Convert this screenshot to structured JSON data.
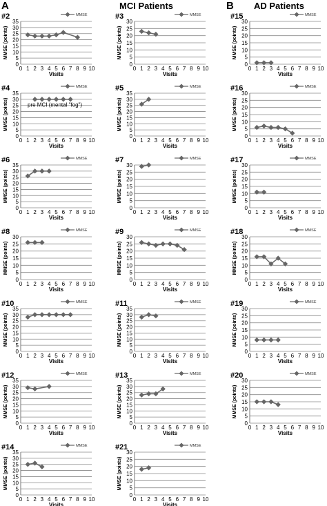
{
  "headers": {
    "A": "A",
    "mci": "MCI Patients",
    "B": "B",
    "ad": "AD Patients"
  },
  "legend_label": "MMSE",
  "ylabel": "MMSE (points)",
  "xlabel": "Visits",
  "colors": {
    "line": "#6b6b6b",
    "marker": "#666666",
    "grid": "#8a8a8a",
    "text": "#000000"
  },
  "chart_data": [
    {
      "id": "#2",
      "type": "line",
      "ylim": [
        0,
        35
      ],
      "xlim": [
        0,
        10
      ],
      "x": [
        1,
        2,
        3,
        4,
        5,
        6,
        8
      ],
      "y": [
        24,
        23,
        23,
        23,
        24,
        26,
        22
      ]
    },
    {
      "id": "#3",
      "type": "line",
      "ylim": [
        0,
        30
      ],
      "xlim": [
        0,
        10
      ],
      "x": [
        1,
        2,
        3
      ],
      "y": [
        23,
        22,
        21
      ]
    },
    {
      "id": "#15",
      "type": "line",
      "ylim": [
        0,
        30
      ],
      "xlim": [
        0,
        10
      ],
      "x": [
        1,
        2,
        3
      ],
      "y": [
        1,
        1,
        1
      ]
    },
    {
      "id": "#4",
      "type": "line",
      "ylim": [
        0,
        35
      ],
      "xlim": [
        0,
        10
      ],
      "x": [
        2,
        3,
        4,
        5,
        6,
        7
      ],
      "y": [
        30,
        30,
        30,
        30,
        30,
        30
      ],
      "annotation": "pre MCI (mental \"fog\")"
    },
    {
      "id": "#5",
      "type": "line",
      "ylim": [
        0,
        35
      ],
      "xlim": [
        0,
        10
      ],
      "x": [
        1,
        2
      ],
      "y": [
        26,
        30
      ]
    },
    {
      "id": "#16",
      "type": "line",
      "ylim": [
        0,
        30
      ],
      "xlim": [
        0,
        10
      ],
      "x": [
        1,
        2,
        3,
        4,
        5,
        6
      ],
      "y": [
        6,
        7,
        6,
        6,
        5,
        2
      ]
    },
    {
      "id": "#6",
      "type": "line",
      "ylim": [
        0,
        35
      ],
      "xlim": [
        0,
        10
      ],
      "x": [
        1,
        2,
        3,
        4
      ],
      "y": [
        26,
        30,
        30,
        30
      ]
    },
    {
      "id": "#7",
      "type": "line",
      "ylim": [
        0,
        30
      ],
      "xlim": [
        0,
        10
      ],
      "x": [
        1,
        2
      ],
      "y": [
        29,
        30
      ]
    },
    {
      "id": "#17",
      "type": "line",
      "ylim": [
        0,
        30
      ],
      "xlim": [
        0,
        10
      ],
      "x": [
        1,
        2
      ],
      "y": [
        11,
        11
      ]
    },
    {
      "id": "#8",
      "type": "line",
      "ylim": [
        0,
        30
      ],
      "xlim": [
        0,
        10
      ],
      "x": [
        1,
        2,
        3
      ],
      "y": [
        26,
        26,
        26
      ]
    },
    {
      "id": "#9",
      "type": "line",
      "ylim": [
        0,
        30
      ],
      "xlim": [
        0,
        10
      ],
      "x": [
        1,
        2,
        3,
        4,
        5,
        6,
        7
      ],
      "y": [
        26,
        25,
        24,
        25,
        25,
        24,
        21
      ]
    },
    {
      "id": "#18",
      "type": "line",
      "ylim": [
        0,
        30
      ],
      "xlim": [
        0,
        10
      ],
      "x": [
        1,
        2,
        3,
        4,
        5
      ],
      "y": [
        16,
        16,
        11,
        15,
        11
      ]
    },
    {
      "id": "#10",
      "type": "line",
      "ylim": [
        0,
        35
      ],
      "xlim": [
        0,
        10
      ],
      "x": [
        1,
        2,
        3,
        4,
        5,
        6,
        7
      ],
      "y": [
        28,
        30,
        30,
        30,
        30,
        30,
        30
      ]
    },
    {
      "id": "#11",
      "type": "line",
      "ylim": [
        0,
        35
      ],
      "xlim": [
        0,
        10
      ],
      "x": [
        1,
        2,
        3
      ],
      "y": [
        28,
        30,
        29
      ]
    },
    {
      "id": "#19",
      "type": "line",
      "ylim": [
        0,
        30
      ],
      "xlim": [
        0,
        10
      ],
      "x": [
        1,
        2,
        3,
        4
      ],
      "y": [
        8,
        8,
        8,
        8
      ]
    },
    {
      "id": "#12",
      "type": "line",
      "ylim": [
        0,
        35
      ],
      "xlim": [
        0,
        10
      ],
      "x": [
        1,
        2,
        4
      ],
      "y": [
        29,
        28,
        30
      ]
    },
    {
      "id": "#13",
      "type": "line",
      "ylim": [
        0,
        35
      ],
      "xlim": [
        0,
        10
      ],
      "x": [
        1,
        2,
        3,
        4
      ],
      "y": [
        23,
        24,
        24,
        28
      ]
    },
    {
      "id": "#20",
      "type": "line",
      "ylim": [
        0,
        30
      ],
      "xlim": [
        0,
        10
      ],
      "x": [
        1,
        2,
        3,
        4
      ],
      "y": [
        15,
        15,
        15,
        13
      ]
    },
    {
      "id": "#14",
      "type": "line",
      "ylim": [
        0,
        35
      ],
      "xlim": [
        0,
        10
      ],
      "x": [
        1,
        2,
        3
      ],
      "y": [
        25,
        26,
        23
      ]
    },
    {
      "id": "#21",
      "type": "line",
      "ylim": [
        0,
        30
      ],
      "xlim": [
        0,
        10
      ],
      "x": [
        1,
        2
      ],
      "y": [
        18,
        19
      ]
    }
  ]
}
